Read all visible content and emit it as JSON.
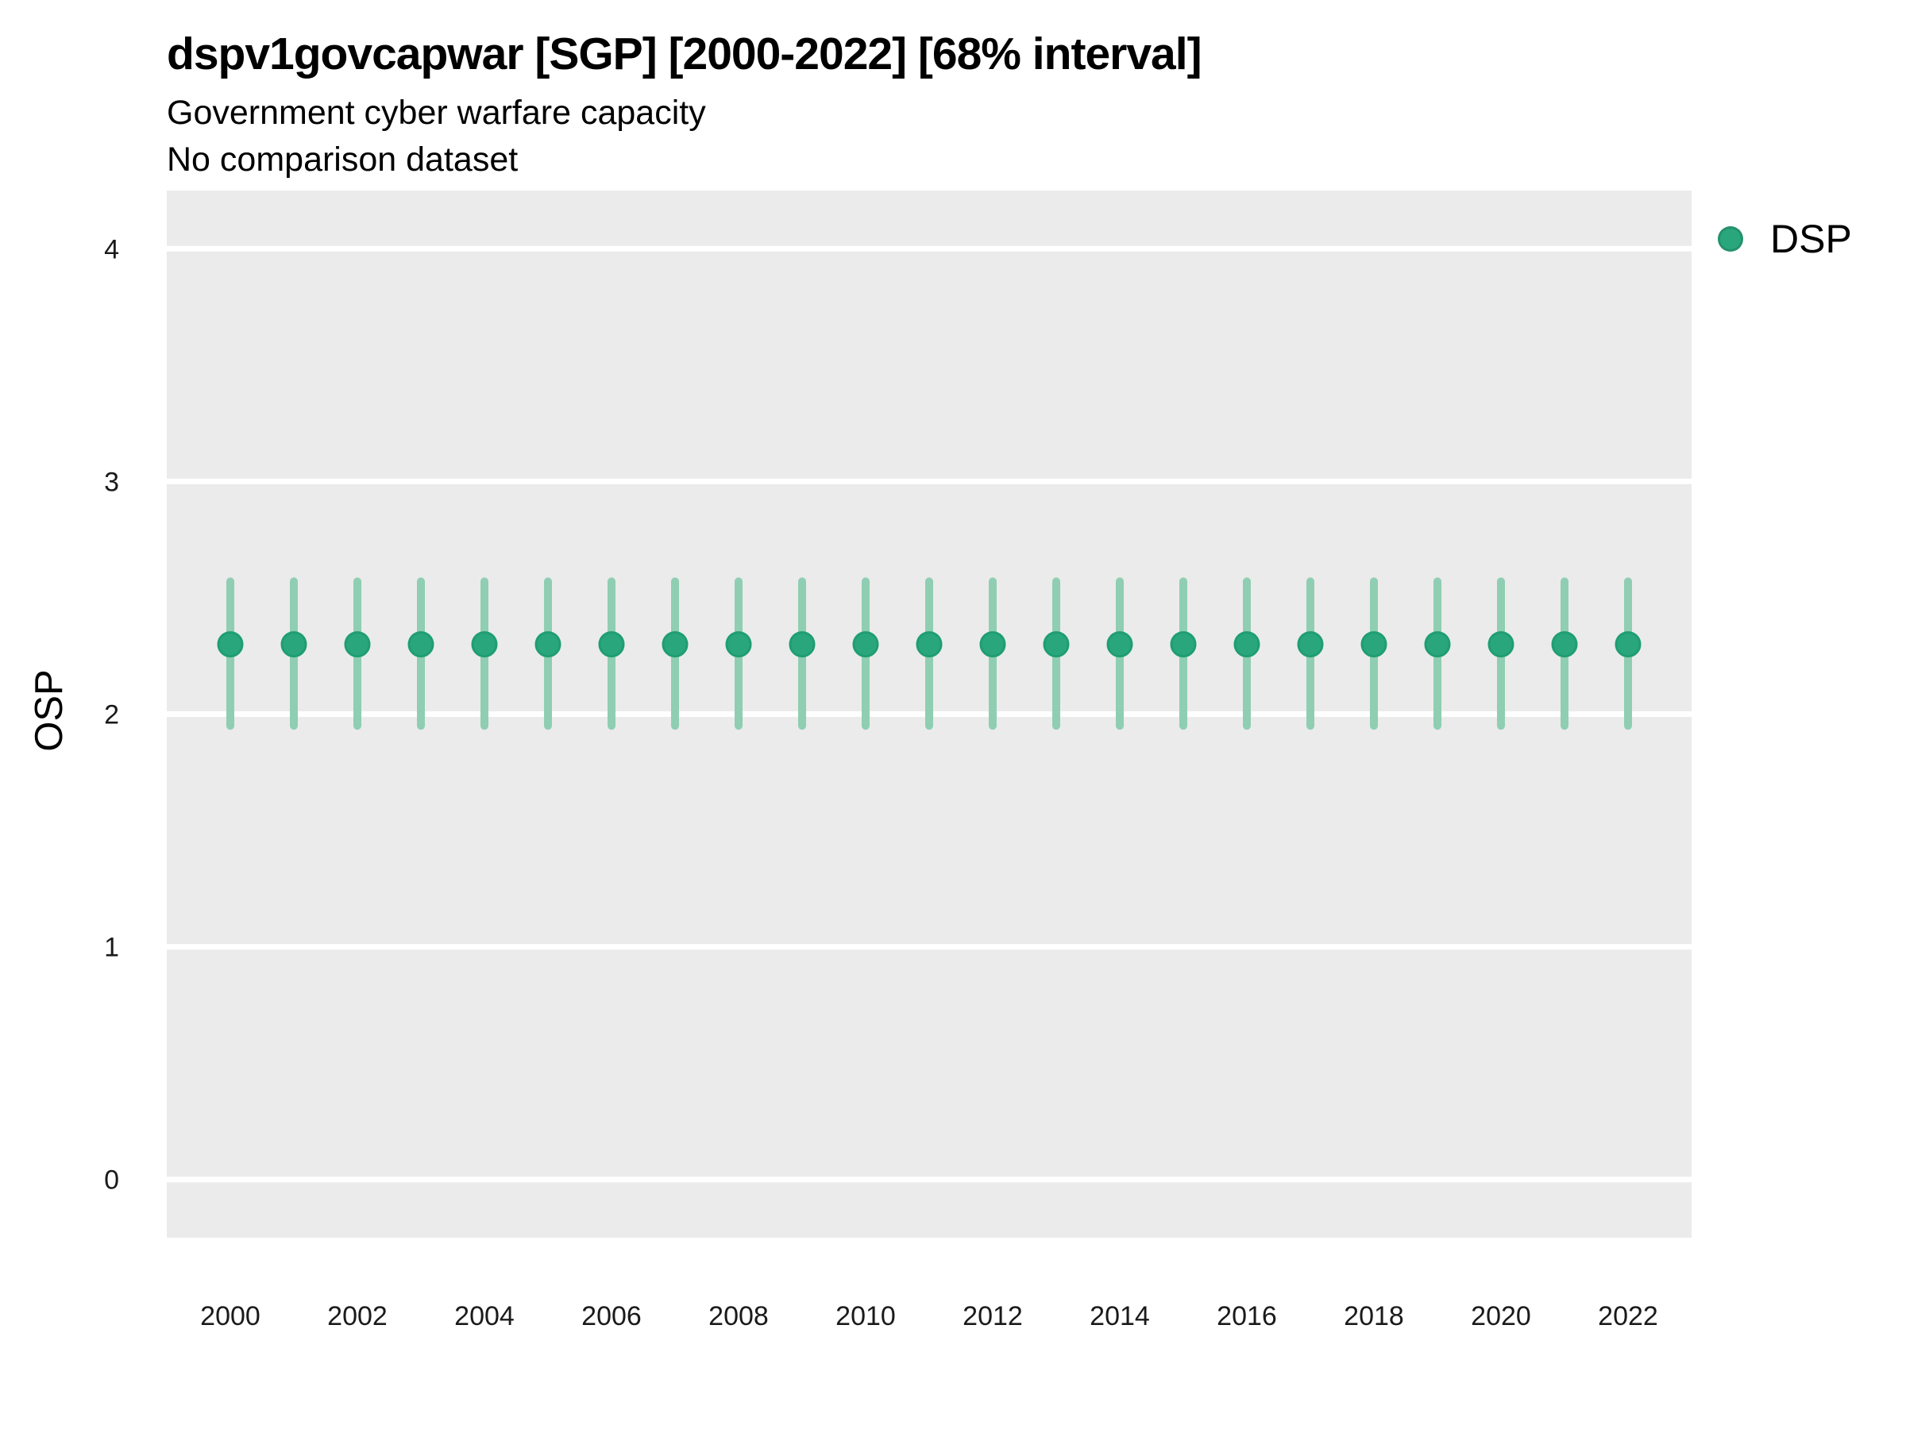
{
  "chart_data": {
    "type": "scatter",
    "subtype": "pointrange",
    "title": "dspv1govcapwar [SGP] [2000-2022] [68% interval]",
    "subtitle": "Government cyber warfare capacity",
    "note": "No comparison dataset",
    "xlabel": "",
    "ylabel": "OSP",
    "interval_label": "68% interval",
    "x": [
      2000,
      2001,
      2002,
      2003,
      2004,
      2005,
      2006,
      2007,
      2008,
      2009,
      2010,
      2011,
      2012,
      2013,
      2014,
      2015,
      2016,
      2017,
      2018,
      2019,
      2020,
      2021,
      2022
    ],
    "series": [
      {
        "name": "DSP",
        "estimate": [
          2.3,
          2.3,
          2.3,
          2.3,
          2.3,
          2.3,
          2.3,
          2.3,
          2.3,
          2.3,
          2.3,
          2.3,
          2.3,
          2.3,
          2.3,
          2.3,
          2.3,
          2.3,
          2.3,
          2.3,
          2.3,
          2.3,
          2.3
        ],
        "lower": [
          1.95,
          1.95,
          1.95,
          1.95,
          1.95,
          1.95,
          1.95,
          1.95,
          1.95,
          1.95,
          1.95,
          1.95,
          1.95,
          1.95,
          1.95,
          1.95,
          1.95,
          1.95,
          1.95,
          1.95,
          1.95,
          1.95,
          1.95
        ],
        "upper": [
          2.57,
          2.57,
          2.57,
          2.57,
          2.57,
          2.57,
          2.57,
          2.57,
          2.57,
          2.57,
          2.57,
          2.57,
          2.57,
          2.57,
          2.57,
          2.57,
          2.57,
          2.57,
          2.57,
          2.57,
          2.57,
          2.57,
          2.57
        ]
      }
    ],
    "xlim": [
      1999,
      2023
    ],
    "ylim": [
      -0.25,
      4.25
    ],
    "x_ticks": [
      2000,
      2002,
      2004,
      2006,
      2008,
      2010,
      2012,
      2014,
      2016,
      2018,
      2020,
      2022
    ],
    "y_ticks": [
      0,
      1,
      2,
      3,
      4
    ],
    "grid": {
      "horizontal_major": true,
      "vertical": false
    },
    "legend": {
      "position": "top-right",
      "entries": [
        {
          "label": "DSP",
          "marker": "circle-icon"
        }
      ]
    },
    "colors": {
      "point": "#2aa67c",
      "point_stroke": "#1f9e71",
      "interval": "#8fceb2",
      "panel_bg": "#ebebeb",
      "grid": "#ffffff",
      "title_text": "#000000",
      "tick_text": "#1a1a1a"
    }
  }
}
